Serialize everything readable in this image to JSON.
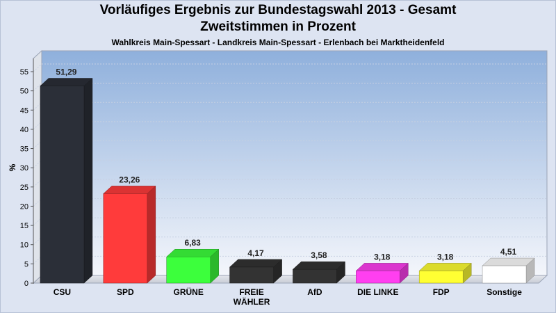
{
  "chart_data": {
    "type": "bar",
    "title": "Vorläufiges Ergebnis zur Bundestagswahl 2013 - Gesamt",
    "title_line2": "Zweitstimmen in Prozent",
    "subtitle": "Wahlkreis Main-Spessart - Landkreis Main-Spessart - Erlenbach bei Marktheidenfeld",
    "ylabel": "%",
    "xlabel": "",
    "ylim": [
      0,
      55
    ],
    "yticks": [
      0,
      5,
      10,
      15,
      20,
      25,
      30,
      35,
      40,
      45,
      50,
      55
    ],
    "grid": true,
    "categories": [
      "CSU",
      "SPD",
      "GRÜNE",
      "FREIE WÄHLER",
      "AfD",
      "DIE LINKE",
      "FDP",
      "Sonstige"
    ],
    "category_lines": [
      [
        "CSU"
      ],
      [
        "SPD"
      ],
      [
        "GRÜNE"
      ],
      [
        "FREIE",
        "WÄHLER"
      ],
      [
        "AfD"
      ],
      [
        "DIE LINKE"
      ],
      [
        "FDP"
      ],
      [
        "Sonstige"
      ]
    ],
    "values": [
      51.29,
      23.26,
      6.83,
      4.17,
      3.58,
      3.18,
      3.18,
      4.51
    ],
    "value_labels": [
      "51,29",
      "23,26",
      "6,83",
      "4,17",
      "3,58",
      "3,18",
      "3,18",
      "4,51"
    ],
    "colors": [
      "#2b2f38",
      "#ff3b3b",
      "#3cff3c",
      "#333333",
      "#333333",
      "#ff3ff0",
      "#ffff33",
      "#ffffff"
    ]
  }
}
